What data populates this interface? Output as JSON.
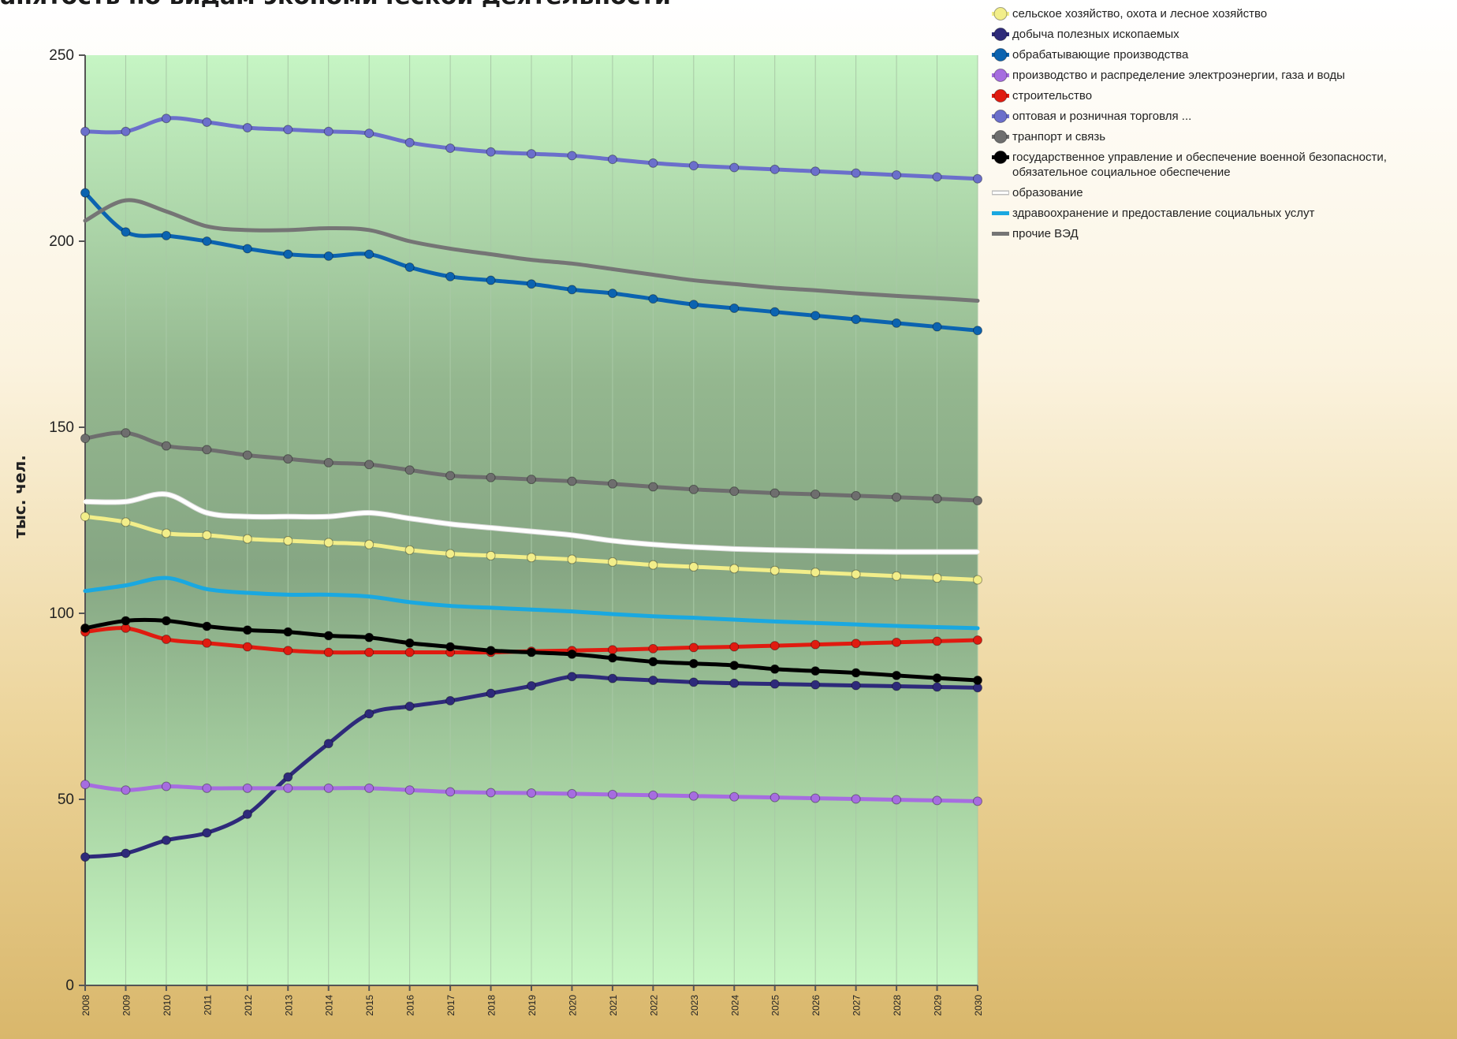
{
  "chart_data": {
    "type": "line",
    "title": "анятость по видам экономической деятельности",
    "ylabel": "тыс. чел.",
    "xlabel": "",
    "x": [
      "2008",
      "2009",
      "2010",
      "2011",
      "2012",
      "2013",
      "2014",
      "2015",
      "2016",
      "2017",
      "2018",
      "2019",
      "2020",
      "2021",
      "2022",
      "2023",
      "2024",
      "2025",
      "2026",
      "2027",
      "2028",
      "2029",
      "2030"
    ],
    "x_tick_labels": [
      "2008",
      "2009",
      "2010",
      "2011",
      "2012",
      "2013",
      "2014",
      "2015",
      "2016",
      "2017",
      "2018",
      "2019",
      "2020",
      "2021",
      "2022",
      "2023",
      "2024",
      "2025",
      "2026",
      "2027",
      "2028",
      "2029",
      "2030"
    ],
    "ylim": [
      0,
      250
    ],
    "yticks": [
      "0",
      "50",
      "100",
      "150",
      "200",
      "250"
    ],
    "grid": "vertical",
    "legend_position": "right",
    "series": [
      {
        "name": "сельское хозяйство, охота и лесное хозяйство",
        "color": "#f2ee8a",
        "marker": "circle",
        "values": [
          126,
          124.5,
          121.5,
          121,
          120,
          119.5,
          119,
          118.5,
          117,
          116,
          115.5,
          115,
          114.5,
          113.8,
          113,
          112.5,
          112,
          111.5,
          111,
          110.5,
          110,
          109.5,
          109
        ]
      },
      {
        "name": "добыча полезных ископаемых",
        "color": "#2e2a7a",
        "marker": "circle",
        "values": [
          34.5,
          35.5,
          39,
          41,
          46,
          56,
          65,
          73,
          75,
          76.5,
          78.5,
          80.5,
          83,
          82.5,
          82,
          81.5,
          81.2,
          81,
          80.8,
          80.6,
          80.4,
          80.2,
          80
        ]
      },
      {
        "name": "обрабатывающие производства",
        "color": "#0b63b0",
        "marker": "circle",
        "values": [
          213,
          202.5,
          201.5,
          200,
          198,
          196.5,
          196,
          196.5,
          193,
          190.5,
          189.5,
          188.5,
          187,
          186,
          184.5,
          183,
          182,
          181,
          180,
          179,
          178,
          177,
          176
        ]
      },
      {
        "name": "производство и распределение электроэнергии, газа и воды",
        "color": "#a66de0",
        "marker": "circle",
        "values": [
          54,
          52.5,
          53.5,
          53,
          53,
          53,
          53,
          53,
          52.5,
          52,
          51.8,
          51.7,
          51.5,
          51.3,
          51.1,
          50.9,
          50.7,
          50.5,
          50.3,
          50.1,
          49.9,
          49.7,
          49.5
        ]
      },
      {
        "name": "строительство",
        "color": "#e01b10",
        "marker": "circle",
        "values": [
          95,
          96,
          93,
          92,
          91,
          90,
          89.5,
          89.5,
          89.5,
          89.5,
          89.5,
          89.8,
          90,
          90.2,
          90.5,
          90.8,
          91,
          91.3,
          91.6,
          91.9,
          92.2,
          92.5,
          92.8
        ]
      },
      {
        "name": "оптовая и розничная торговля ...",
        "color": "#6b6fcb",
        "marker": "circle",
        "values": [
          229.5,
          229.5,
          233,
          232,
          230.5,
          230,
          229.5,
          229,
          226.5,
          225,
          224,
          223.5,
          223,
          222,
          221,
          220.3,
          219.8,
          219.3,
          218.8,
          218.3,
          217.8,
          217.3,
          216.8
        ]
      },
      {
        "name": "транпорт и связь",
        "color": "#6e6e6e",
        "marker": "circle",
        "values": [
          147,
          148.5,
          145,
          144,
          142.5,
          141.5,
          140.5,
          140,
          138.5,
          137,
          136.5,
          136,
          135.5,
          134.8,
          134,
          133.3,
          132.8,
          132.3,
          132,
          131.6,
          131.2,
          130.8,
          130.3
        ]
      },
      {
        "name": "государственное управление и обеспечение военной безопасности, обязательное социальное обеспечение",
        "color": "#000000",
        "marker": "circle",
        "values": [
          96,
          98,
          98,
          96.5,
          95.5,
          95,
          94,
          93.5,
          92,
          91,
          90,
          89.5,
          89,
          88,
          87,
          86.5,
          86,
          85,
          84.5,
          84,
          83.3,
          82.6,
          82
        ]
      },
      {
        "name": "образование",
        "color": "#ffffff",
        "marker": "none",
        "values": [
          130,
          130,
          132,
          127,
          126,
          126,
          126,
          127,
          125.5,
          124,
          123,
          122,
          121,
          119.5,
          118.5,
          117.8,
          117.3,
          117,
          116.8,
          116.6,
          116.5,
          116.5,
          116.5
        ]
      },
      {
        "name": "здравоохранение и предоставление социальных услут",
        "color": "#1aa8e0",
        "marker": "none",
        "values": [
          106,
          107.5,
          109.5,
          106.5,
          105.5,
          105,
          105,
          104.5,
          103,
          102,
          101.5,
          101,
          100.5,
          99.8,
          99.2,
          98.8,
          98.3,
          97.8,
          97.4,
          97,
          96.6,
          96.3,
          96
        ]
      },
      {
        "name": "прочие ВЭД",
        "color": "#757575",
        "marker": "none",
        "values": [
          205.5,
          211,
          208,
          204,
          203,
          203,
          203.5,
          203,
          200,
          198,
          196.5,
          195,
          194,
          192.5,
          191,
          189.5,
          188.5,
          187.5,
          186.8,
          186,
          185.3,
          184.7,
          184
        ]
      }
    ]
  }
}
